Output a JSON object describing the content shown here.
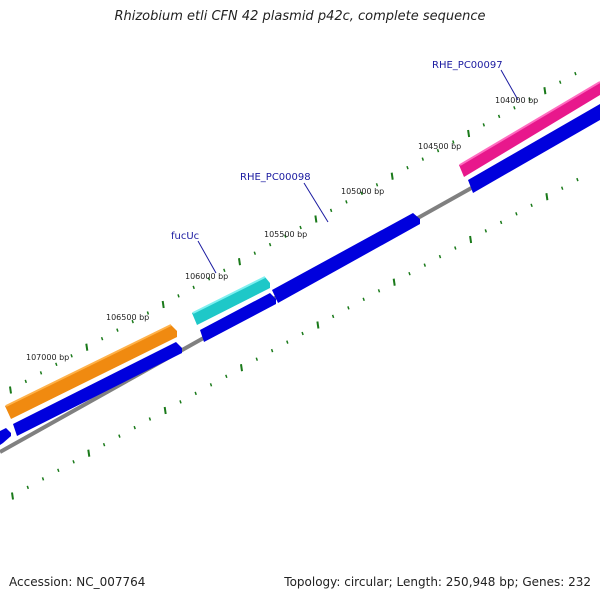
{
  "title": "Rhizobium etli CFN 42 plasmid p42c, complete sequence",
  "footer": {
    "accession": "Accession: NC_007764",
    "summary": "Topology: circular; Length: 250,948 bp; Genes: 232"
  },
  "bp_labels": [
    "104000 bp",
    "104500 bp",
    "105000 bp",
    "105500 bp",
    "106000 bp",
    "106500 bp",
    "107000 bp"
  ],
  "gene_labels": [
    "RHE_PC00097",
    "RHE_PC00098",
    "fucUc"
  ],
  "colors": {
    "background": "#ffffff",
    "backbone": "#808080",
    "tick": "#1a7a1a",
    "cds_blue": "#0000dd",
    "gene_pink": "#e8188c",
    "gene_cyan": "#1ec8c8",
    "gene_orange": "#f08a10",
    "label_blue": "#1a1aa0"
  }
}
